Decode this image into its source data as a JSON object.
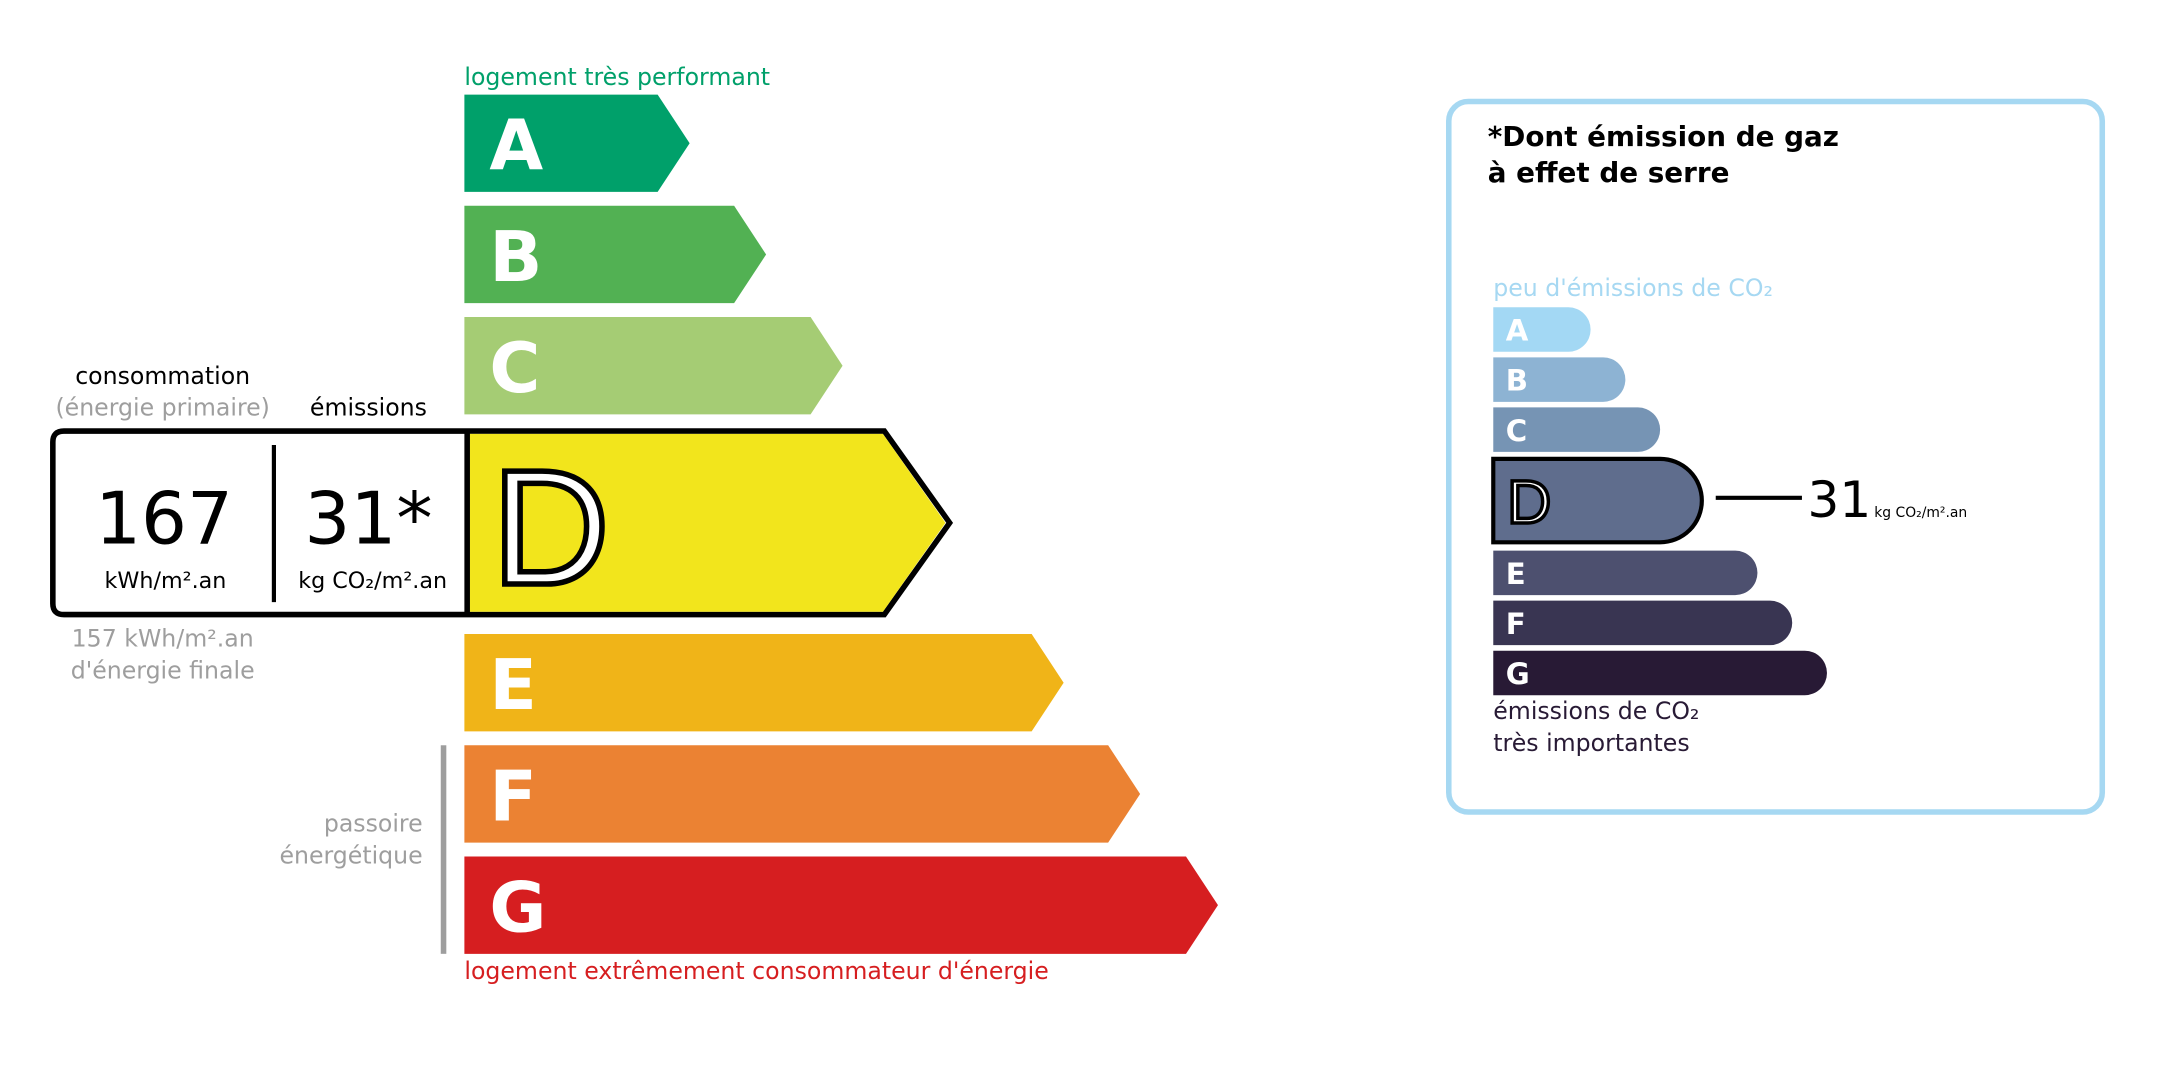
{
  "energy": {
    "top_label": "logement très performant",
    "bottom_label": "logement extrêmement consommateur d'énergie",
    "passoire_label": [
      "passoire",
      "énergétique"
    ],
    "current_class": "D",
    "classes": [
      {
        "letter": "A",
        "color": "#00a06a"
      },
      {
        "letter": "B",
        "color": "#52b153"
      },
      {
        "letter": "C",
        "color": "#a5cc74"
      },
      {
        "letter": "D",
        "color": "#f2e51c"
      },
      {
        "letter": "E",
        "color": "#f0b418"
      },
      {
        "letter": "F",
        "color": "#eb8233"
      },
      {
        "letter": "G",
        "color": "#d61e20"
      }
    ],
    "consumption_header": "consommation",
    "consumption_subheader": "(énergie primaire)",
    "emissions_header": "émissions",
    "consumption_value": "167",
    "consumption_unit": "kWh/m².an",
    "emissions_value": "31*",
    "emissions_unit": "kg CO₂/m².an",
    "final_energy": [
      "157 kWh/m².an",
      "d'énergie finale"
    ]
  },
  "ges": {
    "title": [
      "*Dont émission de gaz",
      "à effet de serre"
    ],
    "top_label": "peu d'émissions de CO₂",
    "bottom_label": [
      "émissions de CO₂",
      "très importantes"
    ],
    "current_class": "D",
    "value": "31",
    "unit": "kg CO₂/m².an",
    "border_color": "#a6d8f2",
    "classes": [
      {
        "letter": "A",
        "color": "#a3d8f4"
      },
      {
        "letter": "B",
        "color": "#8db3d3"
      },
      {
        "letter": "C",
        "color": "#7694b4"
      },
      {
        "letter": "D",
        "color": "#5f6d8d"
      },
      {
        "letter": "E",
        "color": "#4d506f"
      },
      {
        "letter": "F",
        "color": "#393552"
      },
      {
        "letter": "G",
        "color": "#281a35"
      }
    ]
  }
}
